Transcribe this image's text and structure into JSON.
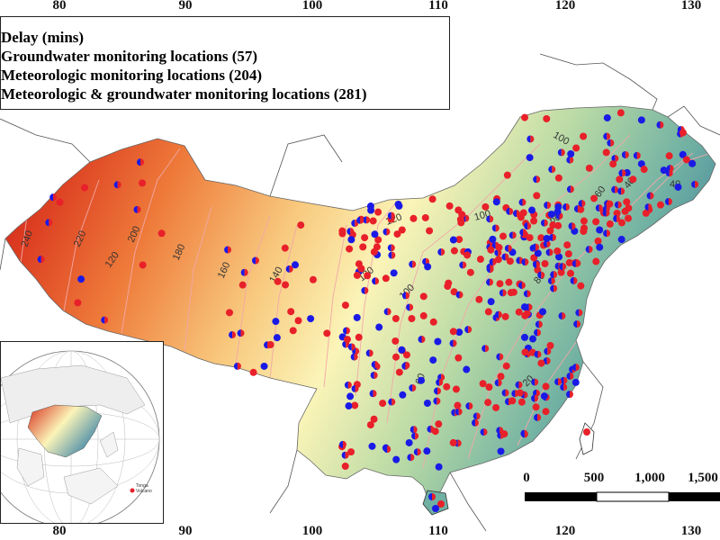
{
  "axes": {
    "longitude_ticks": [
      "80",
      "90",
      "100",
      "110",
      "120",
      "130"
    ]
  },
  "legend": {
    "lines": [
      "Delay (mins)",
      "Groundwater monitoring locations (57)",
      "Meteorologic monitoring locations (204)",
      "Meteorologic & groundwater monitoring locations (281)"
    ]
  },
  "contours": {
    "labels": [
      "240",
      "220",
      "200",
      "180",
      "160",
      "140",
      "120",
      "120",
      "120",
      "100",
      "100",
      "100",
      "80",
      "60",
      "60",
      "60",
      "40",
      "40",
      "20"
    ]
  },
  "scale_bar": {
    "labels": [
      "0",
      "500",
      "1,000",
      "1,500"
    ]
  },
  "inset": {
    "volcano_label": "Tonga Volcano"
  },
  "colors": {
    "groundwater_marker": "#1a1ae6",
    "meteorologic_marker": "#e8202a",
    "delay_high": "#d93a1f",
    "delay_mid": "#fbf4b8",
    "delay_low": "#3f86a8",
    "contour_line": "#f2a8a8"
  }
}
